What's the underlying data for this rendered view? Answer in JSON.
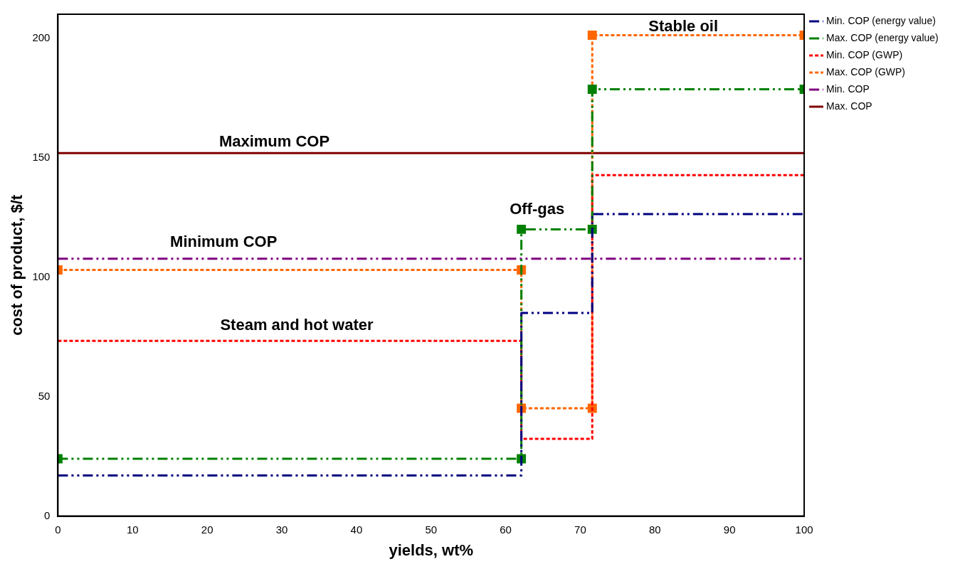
{
  "chart_data": {
    "type": "line",
    "xlabel": "yields, wt%",
    "ylabel": "cost of product, $/t",
    "xlim": [
      0,
      100
    ],
    "xticks": [
      0,
      10,
      20,
      30,
      40,
      50,
      60,
      70,
      80,
      90,
      100
    ],
    "ylim": [
      0,
      210
    ],
    "yticks": [
      0,
      50,
      100,
      150,
      200
    ],
    "grid": false,
    "legend": "top right",
    "series": [
      {
        "name": "Min. COP (energy value)",
        "color": "#000080",
        "line_style": "dashed",
        "marker": "none",
        "x": [
          0,
          62.1,
          62.1,
          71.6,
          71.6,
          100
        ],
        "values": [
          17,
          17,
          85,
          85,
          126.4,
          126.4
        ]
      },
      {
        "name": "Max. COP (energy value)",
        "color": "#008000",
        "line_style": "dashed",
        "marker": "square",
        "x": [
          0,
          62.1,
          62.1,
          71.6,
          71.6,
          100
        ],
        "values": [
          24,
          24,
          120,
          120,
          178.6,
          178.6
        ]
      },
      {
        "name": "Min. COP (GWP)",
        "color": "#ff0000",
        "line_style": "dotted",
        "marker": "none",
        "x": [
          0,
          62.1,
          62.1,
          71.6,
          71.6,
          100
        ],
        "values": [
          73.3,
          73.3,
          32.3,
          32.3,
          142.7,
          142.7
        ]
      },
      {
        "name": "Max. COP (GWP)",
        "color": "#ff6600",
        "line_style": "dotted",
        "marker": "square",
        "x": [
          0,
          62.1,
          62.1,
          71.6,
          71.6,
          100
        ],
        "values": [
          103,
          103,
          45.1,
          45.1,
          201.2,
          201.2
        ]
      },
      {
        "name": "Min. COP",
        "color": "#800080",
        "line_style": "dashed",
        "marker": "none",
        "x": [
          0,
          100
        ],
        "values": [
          107.7,
          107.7
        ]
      },
      {
        "name": "Max. COP",
        "color": "#800000",
        "line_style": "solid",
        "marker": "none",
        "x": [
          0,
          100
        ],
        "values": [
          151.9,
          151.9
        ]
      }
    ],
    "annotations": [
      "Stable oil",
      "Off-gas",
      "Steam and hot water",
      "Maximum COP",
      "Minimum COP"
    ]
  }
}
